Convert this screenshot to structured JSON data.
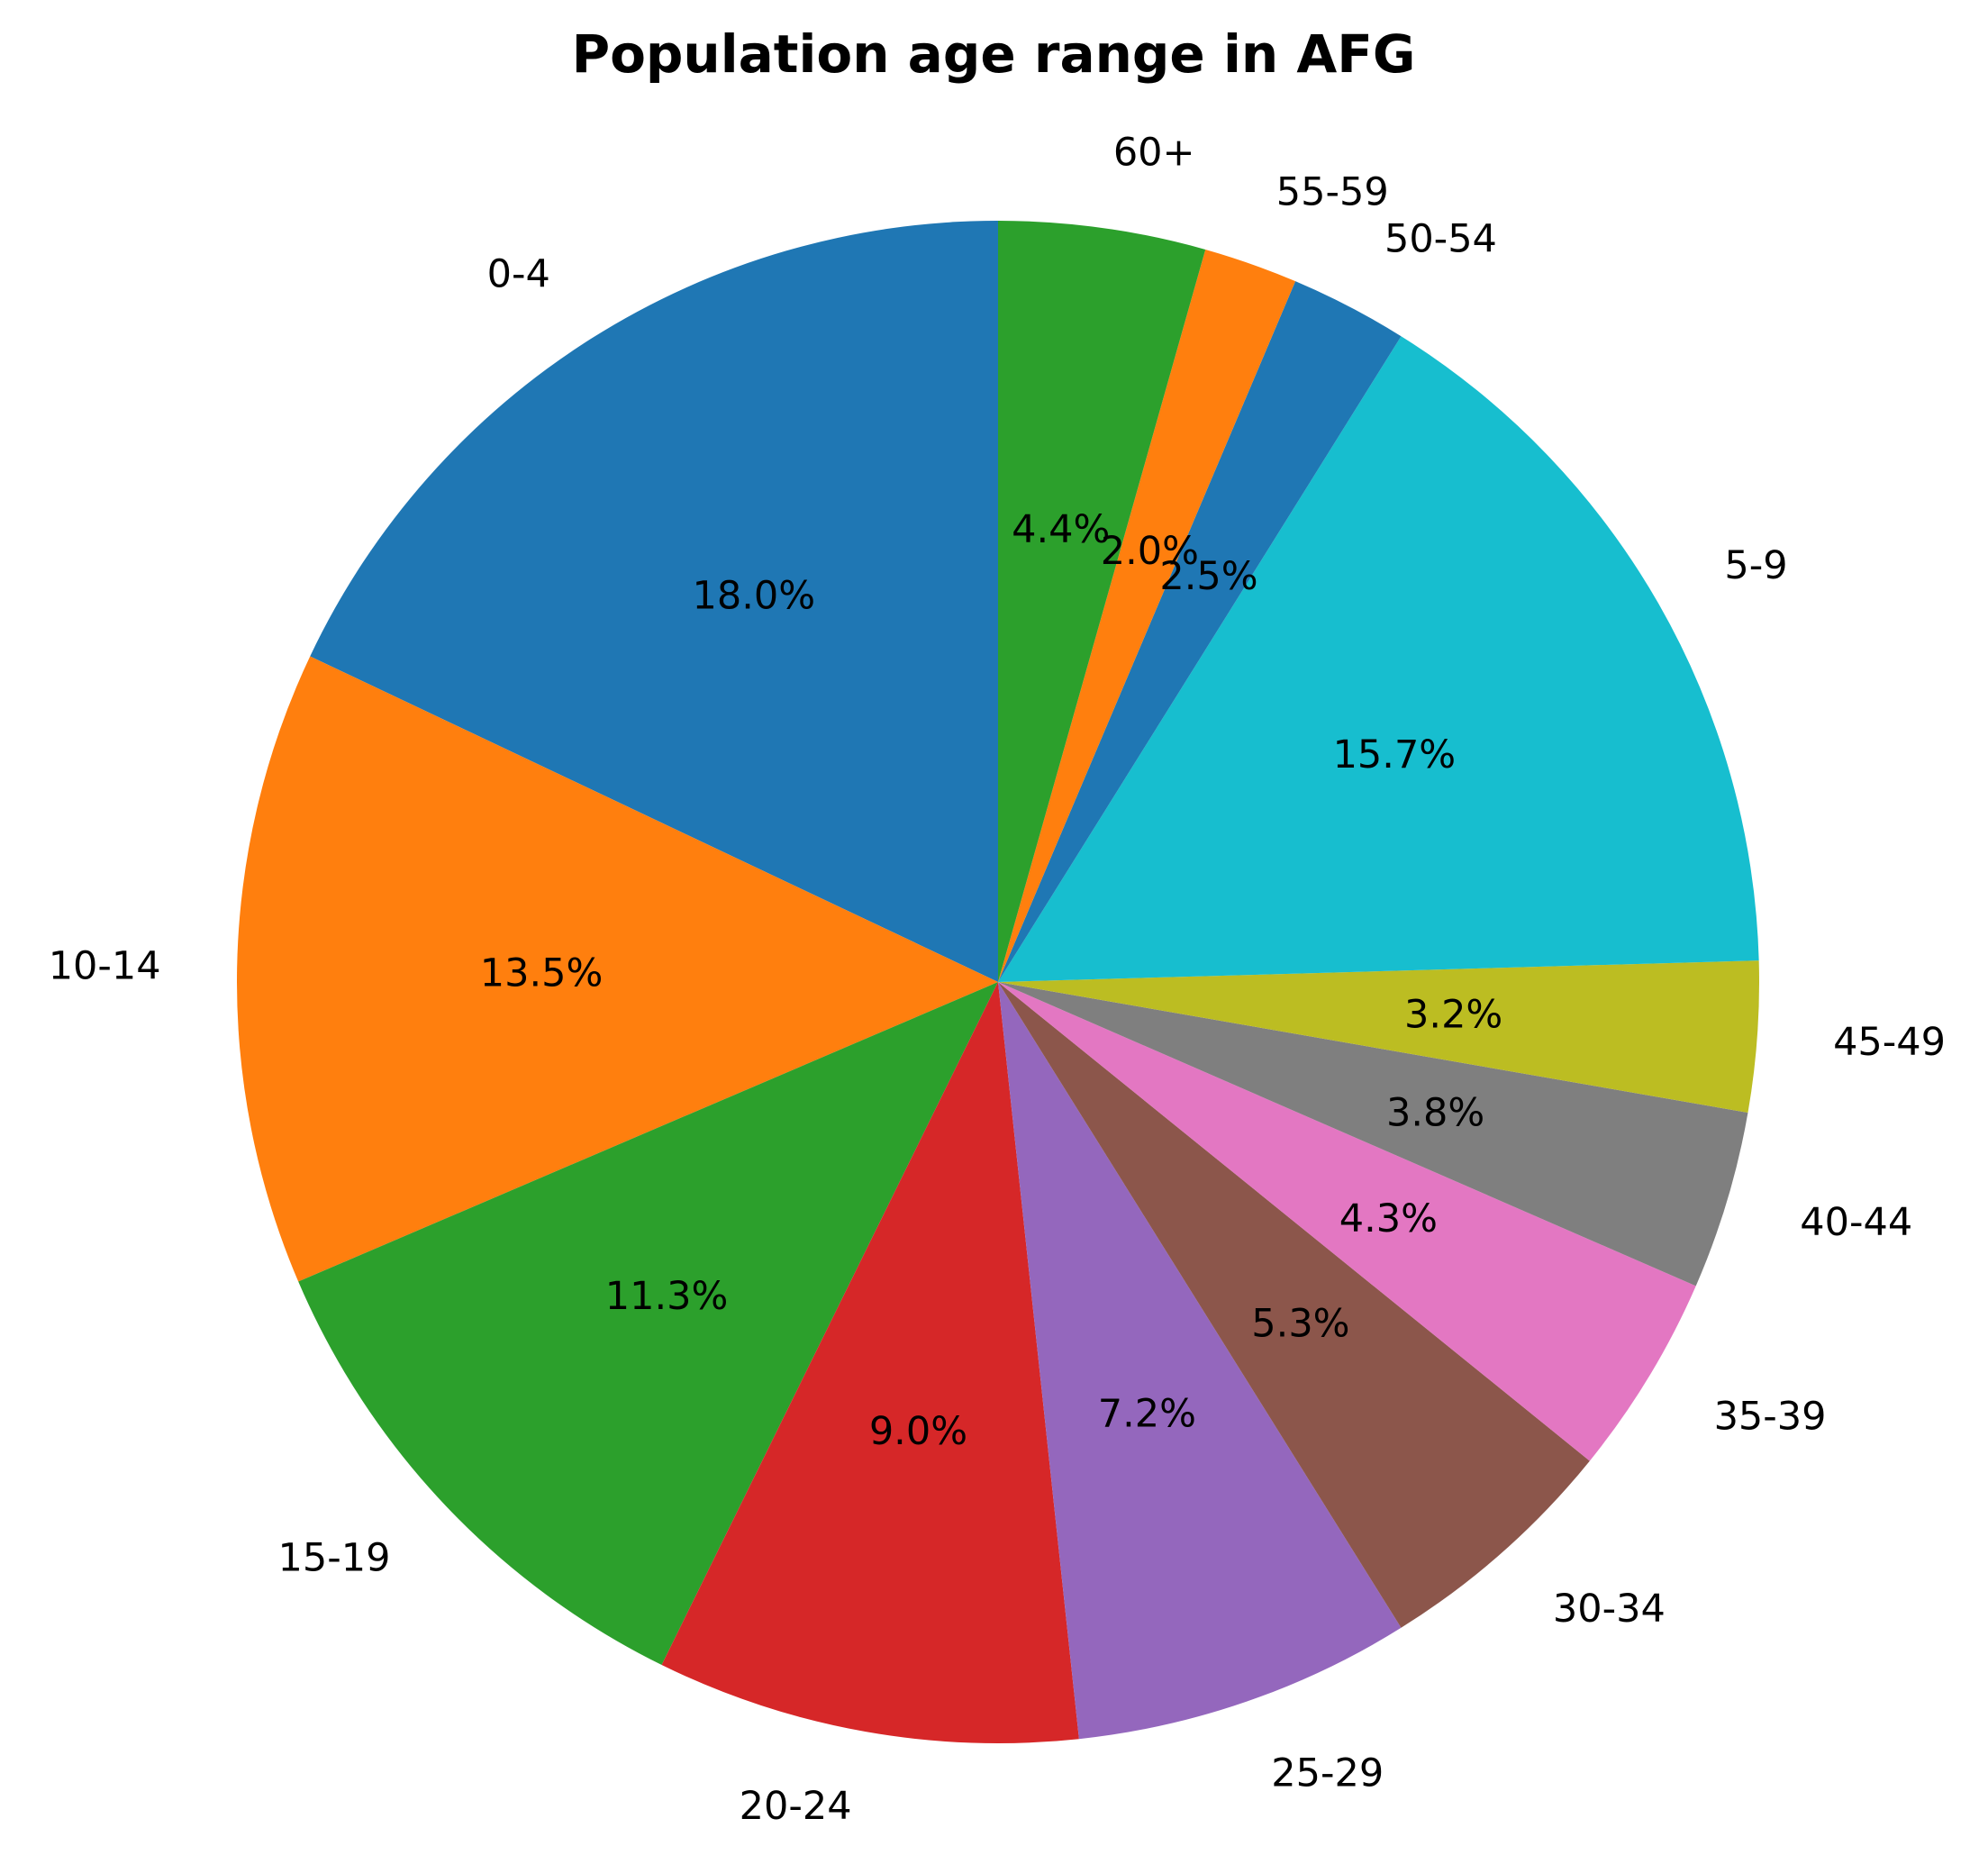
{
  "chart_data": {
    "type": "pie",
    "title": "Population age range in AFG",
    "start_angle_deg": 90,
    "direction": "counterclockwise",
    "slices": [
      {
        "label": "0-4",
        "value": 18.0,
        "pct_label": "18.0%",
        "color": "#1f77b4"
      },
      {
        "label": "10-14",
        "value": 13.5,
        "pct_label": "13.5%",
        "color": "#ff7f0e"
      },
      {
        "label": "15-19",
        "value": 11.3,
        "pct_label": "11.3%",
        "color": "#2ca02c"
      },
      {
        "label": "20-24",
        "value": 9.0,
        "pct_label": "9.0%",
        "color": "#d62728"
      },
      {
        "label": "25-29",
        "value": 7.2,
        "pct_label": "7.2%",
        "color": "#9467bd"
      },
      {
        "label": "30-34",
        "value": 5.3,
        "pct_label": "5.3%",
        "color": "#8c564b"
      },
      {
        "label": "35-39",
        "value": 4.3,
        "pct_label": "4.3%",
        "color": "#e377c2"
      },
      {
        "label": "40-44",
        "value": 3.8,
        "pct_label": "3.8%",
        "color": "#7f7f7f"
      },
      {
        "label": "45-49",
        "value": 3.2,
        "pct_label": "3.2%",
        "color": "#bcbd22"
      },
      {
        "label": "5-9",
        "value": 15.7,
        "pct_label": "15.7%",
        "color": "#17becf"
      },
      {
        "label": "50-54",
        "value": 2.5,
        "pct_label": "2.5%",
        "color": "#1f77b4"
      },
      {
        "label": "55-59",
        "value": 2.0,
        "pct_label": "2.0%",
        "color": "#ff7f0e"
      },
      {
        "label": "60+",
        "value": 4.4,
        "pct_label": "4.4%",
        "color": "#2ca02c"
      }
    ]
  }
}
